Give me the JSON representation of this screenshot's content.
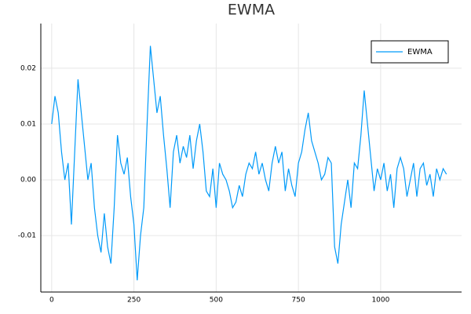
{
  "chart_data": {
    "type": "line",
    "title": "EWMA",
    "x": [
      0,
      10,
      20,
      30,
      40,
      50,
      60,
      70,
      80,
      90,
      100,
      110,
      120,
      130,
      140,
      150,
      160,
      170,
      180,
      190,
      200,
      210,
      220,
      230,
      240,
      250,
      260,
      270,
      280,
      290,
      300,
      310,
      320,
      330,
      340,
      350,
      360,
      370,
      380,
      390,
      400,
      410,
      420,
      430,
      440,
      450,
      460,
      470,
      480,
      490,
      500,
      510,
      520,
      530,
      540,
      550,
      560,
      570,
      580,
      590,
      600,
      610,
      620,
      630,
      640,
      650,
      660,
      670,
      680,
      690,
      700,
      710,
      720,
      730,
      740,
      750,
      760,
      770,
      780,
      790,
      800,
      810,
      820,
      830,
      840,
      850,
      860,
      870,
      880,
      890,
      900,
      910,
      920,
      930,
      940,
      950,
      960,
      970,
      980,
      990,
      1000,
      1010,
      1020,
      1030,
      1040,
      1050,
      1060,
      1070,
      1080,
      1090,
      1100,
      1110,
      1120,
      1130,
      1140,
      1150,
      1160,
      1170,
      1180,
      1190,
      1200
    ],
    "series": [
      {
        "name": "EWMA",
        "color": "#009af9",
        "values": [
          0.01,
          0.015,
          0.012,
          0.005,
          0.0,
          0.003,
          -0.008,
          0.005,
          0.018,
          0.012,
          0.006,
          0.0,
          0.003,
          -0.005,
          -0.01,
          -0.013,
          -0.006,
          -0.012,
          -0.015,
          -0.005,
          0.008,
          0.003,
          0.001,
          0.004,
          -0.003,
          -0.008,
          -0.018,
          -0.01,
          -0.005,
          0.01,
          0.024,
          0.018,
          0.012,
          0.015,
          0.008,
          0.002,
          -0.005,
          0.005,
          0.008,
          0.003,
          0.006,
          0.004,
          0.008,
          0.002,
          0.007,
          0.01,
          0.005,
          -0.002,
          -0.003,
          0.002,
          -0.005,
          0.003,
          0.001,
          0.0,
          -0.002,
          -0.005,
          -0.004,
          -0.001,
          -0.003,
          0.001,
          0.003,
          0.002,
          0.005,
          0.001,
          0.003,
          0.0,
          -0.002,
          0.003,
          0.006,
          0.003,
          0.005,
          -0.002,
          0.002,
          -0.001,
          -0.003,
          0.003,
          0.005,
          0.009,
          0.012,
          0.007,
          0.005,
          0.003,
          0.0,
          0.001,
          0.004,
          0.003,
          -0.012,
          -0.015,
          -0.008,
          -0.004,
          0.0,
          -0.005,
          0.003,
          0.002,
          0.008,
          0.016,
          0.01,
          0.004,
          -0.002,
          0.002,
          0.0,
          0.003,
          -0.002,
          0.001,
          -0.005,
          0.002,
          0.004,
          0.002,
          -0.003,
          0.0,
          0.003,
          -0.003,
          0.002,
          0.003,
          -0.001,
          0.001,
          -0.003,
          0.002,
          0.0,
          0.002,
          0.001
        ]
      }
    ],
    "xlim": [
      -33,
      1246
    ],
    "xticks": [
      0,
      250,
      500,
      750,
      1000
    ],
    "ylim": [
      -0.0201,
      0.028
    ],
    "yticks": [
      -0.01,
      {
        "value": 0,
        "label": "0.00"
      },
      0.01,
      0.02
    ],
    "grid": true,
    "legend": "top-right"
  }
}
